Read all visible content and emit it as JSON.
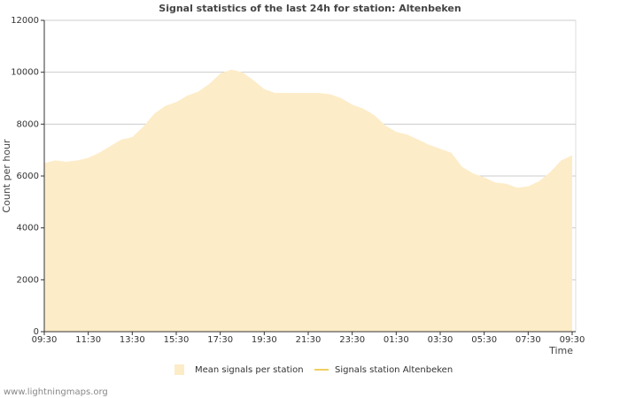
{
  "chart_data": {
    "type": "area",
    "title": "Signal statistics of the last 24h for station: Altenbeken",
    "y_label": "Count per hour",
    "x_label": "Time",
    "footer": "www.lightningmaps.org",
    "categories": [
      "09:30",
      null,
      null,
      null,
      "11:30",
      null,
      null,
      null,
      "13:30",
      null,
      null,
      null,
      "15:30",
      null,
      null,
      null,
      "17:30",
      null,
      null,
      null,
      "19:30",
      null,
      null,
      null,
      "21:30",
      null,
      null,
      null,
      "23:30",
      null,
      null,
      null,
      "01:30",
      null,
      null,
      null,
      "03:30",
      null,
      null,
      null,
      "05:30",
      null,
      null,
      null,
      "07:30",
      null,
      null,
      null,
      "09:30"
    ],
    "series": [
      {
        "name": "Mean signals per station",
        "color": "#fdecc8",
        "kind": "area",
        "values": [
          6500,
          6600,
          6550,
          6600,
          6700,
          6900,
          7150,
          7400,
          7500,
          7900,
          8400,
          8700,
          8850,
          9100,
          9250,
          9550,
          9950,
          10100,
          10000,
          9700,
          9350,
          9200,
          9200,
          9200,
          9200,
          9200,
          9150,
          9000,
          8750,
          8600,
          8350,
          7950,
          7700,
          7600,
          7400,
          7200,
          7050,
          6900,
          6350,
          6100,
          5950,
          5750,
          5700,
          5550,
          5600,
          5800,
          6150,
          6600,
          6800
        ]
      },
      {
        "name": "Signals station Altenbeken",
        "color": "#f0d060",
        "kind": "line",
        "values": [
          null,
          null,
          null,
          null,
          null,
          null,
          null,
          null,
          null,
          null,
          null,
          null,
          null,
          null,
          null,
          null,
          null,
          null,
          null,
          null,
          null,
          null,
          null,
          null,
          null,
          null,
          null,
          null,
          null,
          null,
          null,
          null,
          null,
          null,
          null,
          null,
          null,
          null,
          null,
          null,
          null,
          null,
          null,
          null,
          null,
          null,
          null,
          null,
          null
        ]
      }
    ],
    "ylim": [
      0,
      12000
    ],
    "yticks": [
      0,
      2000,
      4000,
      6000,
      8000,
      10000,
      12000
    ],
    "grid": true
  }
}
